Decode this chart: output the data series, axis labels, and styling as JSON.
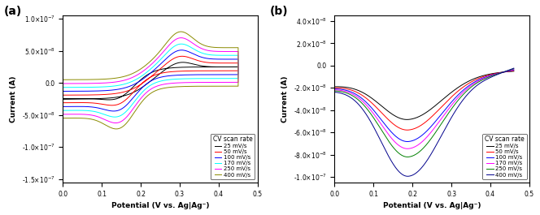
{
  "panel_a": {
    "title": "(a)",
    "xlabel": "Potential (V vs. Ag|Ag⁻)",
    "ylabel": "Current (A)",
    "xlim": [
      0.0,
      0.5
    ],
    "ylim": [
      -1.55e-07,
      1.05e-07
    ],
    "ytick_vals": [
      -1.5e-07,
      -1e-07,
      -5e-08,
      0.0,
      5e-08,
      1e-07
    ],
    "xticks": [
      0.0,
      0.1,
      0.2,
      0.3,
      0.4,
      0.5
    ],
    "legend_title": "CV scan rate",
    "colors": [
      "black",
      "red",
      "blue",
      "cyan",
      "magenta",
      "#8B8B00"
    ],
    "labels": [
      "25 mV/s",
      "50 mV/s",
      "100 mV/s",
      "170 mV/s",
      "250 mV/s",
      "400 mV/s"
    ]
  },
  "panel_b": {
    "title": "(b)",
    "xlabel": "Potential (V vs. Ag|Ag⁻)",
    "ylabel": "Current (A)",
    "xlim": [
      0.0,
      0.5
    ],
    "ylim": [
      -1.05e-07,
      4.5e-08
    ],
    "ytick_vals": [
      -1e-07,
      -8e-08,
      -6e-08,
      -4e-08,
      -2e-08,
      0.0,
      2e-08,
      4e-08
    ],
    "xticks": [
      0.0,
      0.1,
      0.2,
      0.3,
      0.4,
      0.5
    ],
    "legend_title": "CV scan rate",
    "colors": [
      "black",
      "red",
      "blue",
      "magenta",
      "green",
      "#00008B"
    ],
    "labels": [
      "25 mV/s",
      "50 mV/s",
      "100 mV/s",
      "170 mV/s",
      "250 mV/s",
      "400 mV/s"
    ]
  }
}
